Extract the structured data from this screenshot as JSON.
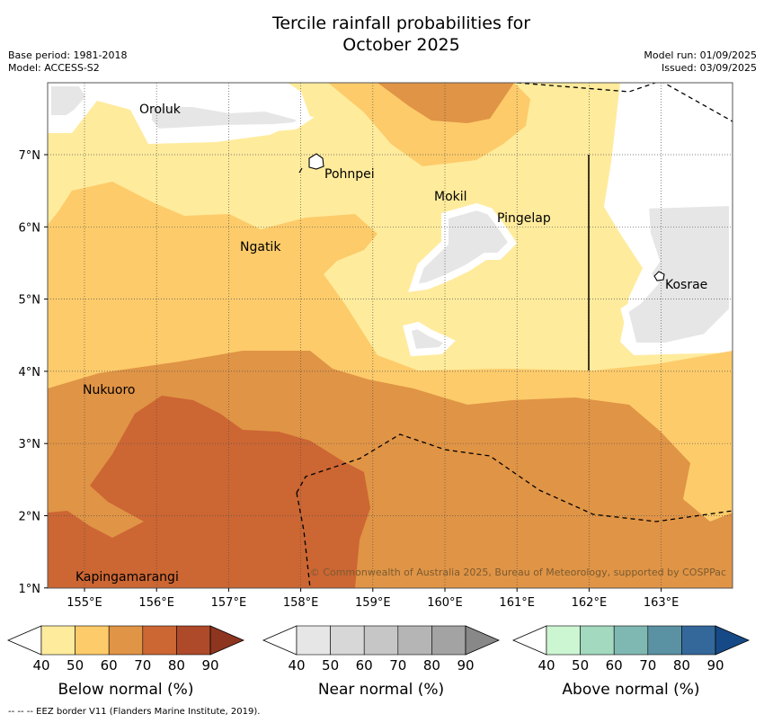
{
  "title_line1": "Tercile rainfall probabilities for",
  "title_line2": "October 2025",
  "base_period": "Base period: 1981-2018",
  "model": "Model: ACCESS-S2",
  "model_run": "Model run: 01/09/2025",
  "issued": "Issued: 03/09/2025",
  "lon_ticks": [
    "155°E",
    "156°E",
    "157°E",
    "158°E",
    "159°E",
    "160°E",
    "161°E",
    "162°E",
    "163°E"
  ],
  "lat_ticks": [
    "7°N",
    "6°N",
    "5°N",
    "4°N",
    "3°N",
    "2°N",
    "1°N"
  ],
  "places": [
    "Oroluk",
    "Pohnpei",
    "Mokil",
    "Pingelap",
    "Ngatik",
    "Kosrae",
    "Nukuoro",
    "Kapingamarangi"
  ],
  "copyright": "© Commonwealth of Australia 2025, Bureau of Meteorology, supported by COSPPac",
  "colorbars": [
    {
      "label": "Below normal (%)",
      "ticks": [
        "40",
        "50",
        "60",
        "70",
        "80",
        "90"
      ],
      "colors": [
        "#ffeb9c",
        "#fdcb6a",
        "#e09445",
        "#cc6633",
        "#ae4a2a",
        "#8e3520"
      ]
    },
    {
      "label": "Near normal (%)",
      "ticks": [
        "40",
        "50",
        "60",
        "70",
        "80",
        "90"
      ],
      "colors": [
        "#e6e6e6",
        "#d7d7d7",
        "#c6c6c6",
        "#b5b5b5",
        "#a3a3a3",
        "#888888"
      ]
    },
    {
      "label": "Above normal (%)",
      "ticks": [
        "40",
        "50",
        "60",
        "70",
        "80",
        "90"
      ],
      "colors": [
        "#ccf5d2",
        "#a2d9bf",
        "#7fb8b2",
        "#5a92a4",
        "#35689a",
        "#164a86"
      ]
    }
  ],
  "footer": "--  --  -- EEZ border V11 (Flanders Marine Institute, 2019)."
}
